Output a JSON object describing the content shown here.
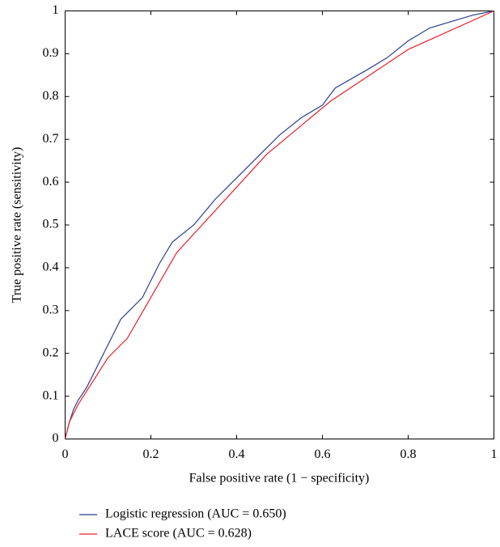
{
  "chart_data": {
    "type": "line",
    "xlabel": "False positive rate (1 − specificity)",
    "ylabel": "True positive rate (sensitivity)",
    "xlim": [
      0,
      1
    ],
    "ylim": [
      0,
      1
    ],
    "xticks": [
      0,
      0.2,
      0.4,
      0.6,
      0.8,
      1
    ],
    "yticks": [
      0,
      0.1,
      0.2,
      0.3,
      0.4,
      0.5,
      0.6,
      0.7,
      0.8,
      0.9,
      1
    ],
    "grid": false,
    "legend": "bottom",
    "series": [
      {
        "name": "Logistic regression (AUC = 0.650)",
        "color": "#2b3f8f",
        "x": [
          0,
          0.01,
          0.02,
          0.03,
          0.05,
          0.07,
          0.1,
          0.13,
          0.16,
          0.18,
          0.2,
          0.22,
          0.25,
          0.3,
          0.35,
          0.4,
          0.45,
          0.5,
          0.55,
          0.6,
          0.63,
          0.7,
          0.75,
          0.8,
          0.85,
          0.9,
          0.95,
          1
        ],
        "values": [
          0,
          0.04,
          0.07,
          0.09,
          0.12,
          0.16,
          0.22,
          0.28,
          0.31,
          0.33,
          0.37,
          0.41,
          0.46,
          0.5,
          0.56,
          0.61,
          0.66,
          0.71,
          0.75,
          0.78,
          0.82,
          0.86,
          0.89,
          0.93,
          0.96,
          0.975,
          0.99,
          1
        ]
      },
      {
        "name": "LACE score (AUC = 0.628)",
        "color": "#e8202a",
        "x": [
          0,
          0.01,
          0.03,
          0.1,
          0.145,
          0.26,
          0.47,
          0.62,
          0.8,
          1
        ],
        "values": [
          0,
          0.04,
          0.08,
          0.19,
          0.235,
          0.435,
          0.665,
          0.79,
          0.91,
          1
        ]
      }
    ]
  }
}
